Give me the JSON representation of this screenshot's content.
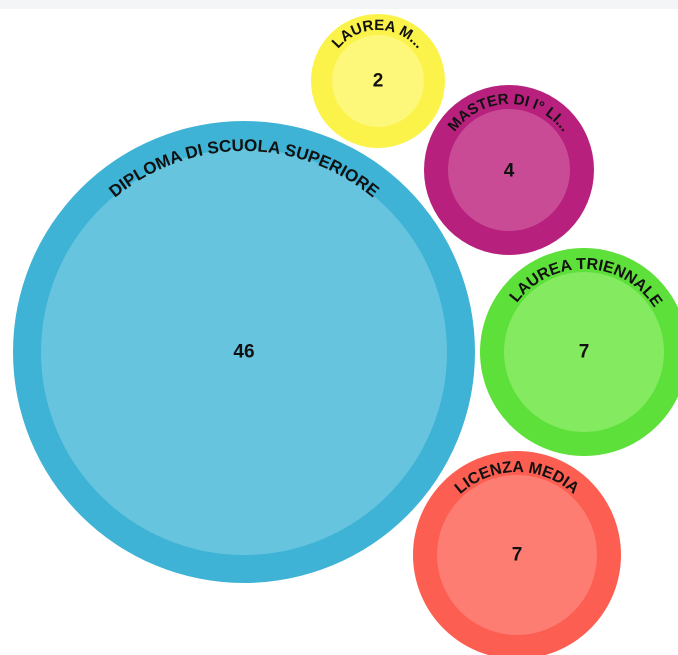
{
  "chart_data": {
    "type": "bubble",
    "title": "",
    "items": [
      {
        "label": "DIPLOMA DI SCUOLA SUPERIORE",
        "value": 46,
        "color": "#3fb3d6",
        "inner_color": "#66c4de"
      },
      {
        "label": "LAUREA M...",
        "value": 2,
        "color": "#fbf34a",
        "inner_color": "#fdf77a"
      },
      {
        "label": "MASTER DI I° LI...",
        "value": 4,
        "color": "#b7207c",
        "inner_color": "#c94b96"
      },
      {
        "label": "LAUREA TRIENNALE",
        "value": 7,
        "color": "#5ee03a",
        "inner_color": "#84ea60"
      },
      {
        "label": "LICENZA MEDIA",
        "value": 7,
        "color": "#fd5e52",
        "inner_color": "#fe7d72"
      }
    ]
  }
}
